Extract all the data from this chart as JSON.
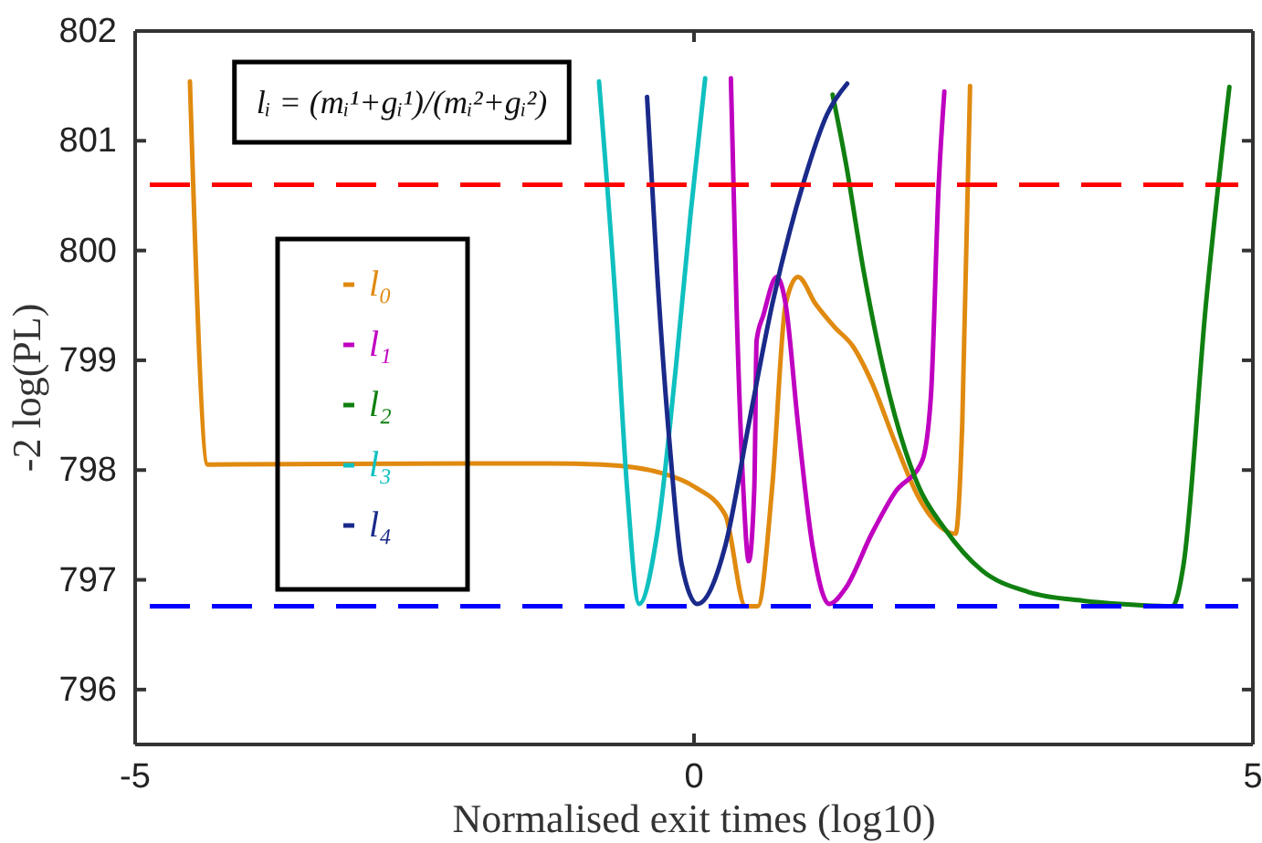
{
  "chart_data": {
    "type": "line",
    "xlabel": "Normalised exit times (log10)",
    "ylabel": "-2 log(PL)",
    "xlim": [
      -5,
      5
    ],
    "xticks": [
      -5,
      0,
      5
    ],
    "ylim": [
      795.5,
      802
    ],
    "yticks": [
      796,
      797,
      798,
      799,
      800,
      801,
      802
    ],
    "grid": false,
    "legend": "left",
    "line_style": "solid",
    "marker": "none",
    "annotations": [
      "lᵢ = (mᵢ¹+gᵢ¹)/(mᵢ²+gᵢ²)"
    ],
    "ref_lines": [
      {
        "axis": "y",
        "value": 800.6,
        "color": "#ff0000",
        "line_style": "dashed"
      },
      {
        "axis": "y",
        "value": 796.76,
        "color": "#0000ff",
        "line_style": "dashed"
      }
    ],
    "series": [
      {
        "name": "l₀",
        "color": "#e08a10",
        "x": [
          -4.51,
          -4.35,
          -2,
          -1.3,
          -0.82,
          -0.28,
          0,
          0.28,
          0.46,
          0.57,
          0.7,
          0.82,
          0.93,
          1.09,
          1.26,
          1.42,
          1.59,
          1.8,
          2.01,
          2.34,
          2.4,
          2.47
        ],
        "values": [
          801.54,
          798.05,
          798.06,
          798.06,
          798.05,
          797.97,
          797.85,
          797.59,
          796.76,
          796.76,
          797.85,
          799.51,
          799.76,
          799.51,
          799.3,
          799.13,
          798.8,
          798.25,
          797.75,
          797.42,
          798.42,
          801.5
        ]
      },
      {
        "name": "l₁",
        "color": "#c000c0",
        "x": [
          0.33,
          0.38,
          0.44,
          0.49,
          0.54,
          0.56,
          0.62,
          0.74,
          0.82,
          0.93,
          1.06,
          1.21,
          1.36,
          1.59,
          1.8,
          2.04,
          2.12,
          2.19,
          2.24
        ],
        "values": [
          801.57,
          799.51,
          797.85,
          797.17,
          797.85,
          799.18,
          799.41,
          799.76,
          799.51,
          798.42,
          797.31,
          796.78,
          796.93,
          797.42,
          797.8,
          798.08,
          798.68,
          800.62,
          801.45
        ]
      },
      {
        "name": "l₂",
        "color": "#108010",
        "x": [
          1.24,
          1.36,
          1.52,
          1.75,
          2.01,
          2.24,
          2.57,
          2.99,
          3.48,
          3.81,
          4.28,
          4.38,
          4.58,
          4.79
        ],
        "values": [
          801.42,
          800.79,
          799.8,
          798.68,
          797.85,
          797.47,
          797.09,
          796.89,
          796.81,
          796.78,
          796.76,
          797.14,
          799.51,
          801.49
        ]
      },
      {
        "name": "l₃",
        "color": "#10c0c0",
        "x": [
          -0.85,
          -0.7,
          -0.6,
          -0.49,
          -0.33,
          -0.16,
          -0.03,
          0.1
        ],
        "values": [
          801.54,
          799.51,
          797.85,
          796.78,
          797.42,
          798.96,
          800.34,
          801.57
        ]
      },
      {
        "name": "l₄",
        "color": "#1a2a8a",
        "x": [
          -0.42,
          -0.33,
          -0.21,
          -0.11,
          0.03,
          0.28,
          0.49,
          0.7,
          0.98,
          1.19,
          1.37
        ],
        "values": [
          801.4,
          799.8,
          798.14,
          797.14,
          796.78,
          797.31,
          798.42,
          799.51,
          800.62,
          801.24,
          801.52
        ]
      }
    ]
  }
}
